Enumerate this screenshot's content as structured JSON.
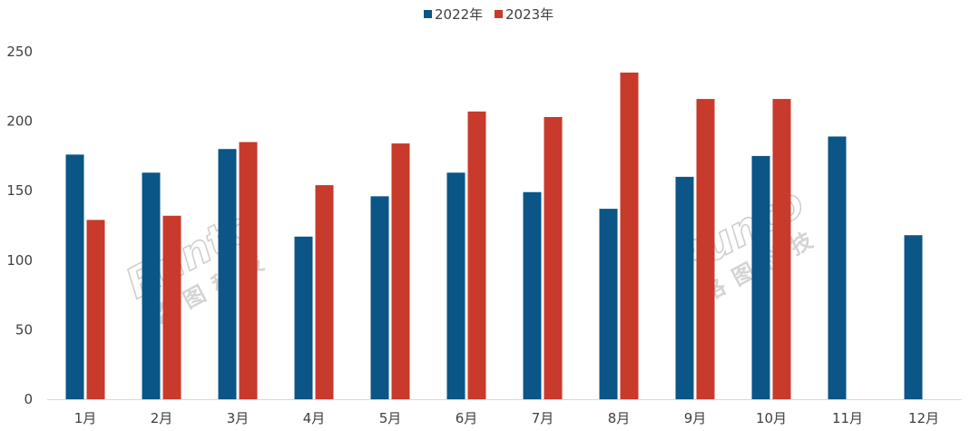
{
  "chart_data": {
    "type": "bar",
    "categories": [
      "1月",
      "2月",
      "3月",
      "4月",
      "5月",
      "6月",
      "7月",
      "8月",
      "9月",
      "10月",
      "11月",
      "12月"
    ],
    "series": [
      {
        "name": "2022年",
        "color": "#0b5587",
        "values": [
          176,
          163,
          180,
          117,
          146,
          163,
          149,
          137,
          160,
          175,
          189,
          118
        ]
      },
      {
        "name": "2023年",
        "color": "#c83a2b",
        "values": [
          129,
          132,
          185,
          154,
          184,
          207,
          203,
          235,
          216,
          216,
          null,
          null
        ]
      }
    ],
    "title": "",
    "xlabel": "",
    "ylabel": "",
    "ylim": [
      0,
      250
    ],
    "yticks": [
      0,
      50,
      100,
      150,
      200,
      250
    ],
    "grid": false,
    "legend_position": "top-center"
  },
  "watermark": {
    "brand": "Runto",
    "brand_cn": "洛图科技"
  }
}
